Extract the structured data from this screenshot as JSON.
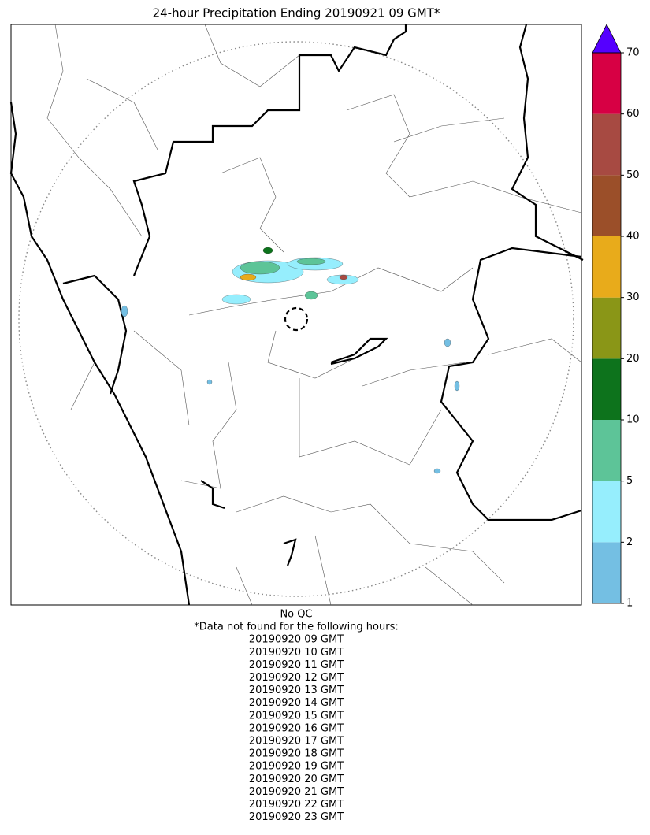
{
  "title": "24-hour Precipitation Ending 20190921 09 GMT*",
  "colorbar": {
    "boundaries": [
      1,
      2,
      5,
      10,
      20,
      30,
      40,
      50,
      60,
      70
    ],
    "colors": [
      "#74bfe3",
      "#96eefd",
      "#5dc498",
      "#0d731c",
      "#8a9617",
      "#e8ab1b",
      "#9b4f29",
      "#a74a42",
      "#d70044"
    ],
    "extend_color": "#5500ff"
  },
  "notes": [
    "No QC",
    "*Data not found for the following hours:",
    "20190920 09 GMT",
    "20190920 10 GMT",
    "20190920 11 GMT",
    "20190920 12 GMT",
    "20190920 13 GMT",
    "20190920 14 GMT",
    "20190920 15 GMT",
    "20190920 16 GMT",
    "20190920 17 GMT",
    "20190920 18 GMT",
    "20190920 19 GMT",
    "20190920 20 GMT",
    "20190920 21 GMT",
    "20190920 22 GMT",
    "20190920 23 GMT"
  ]
}
